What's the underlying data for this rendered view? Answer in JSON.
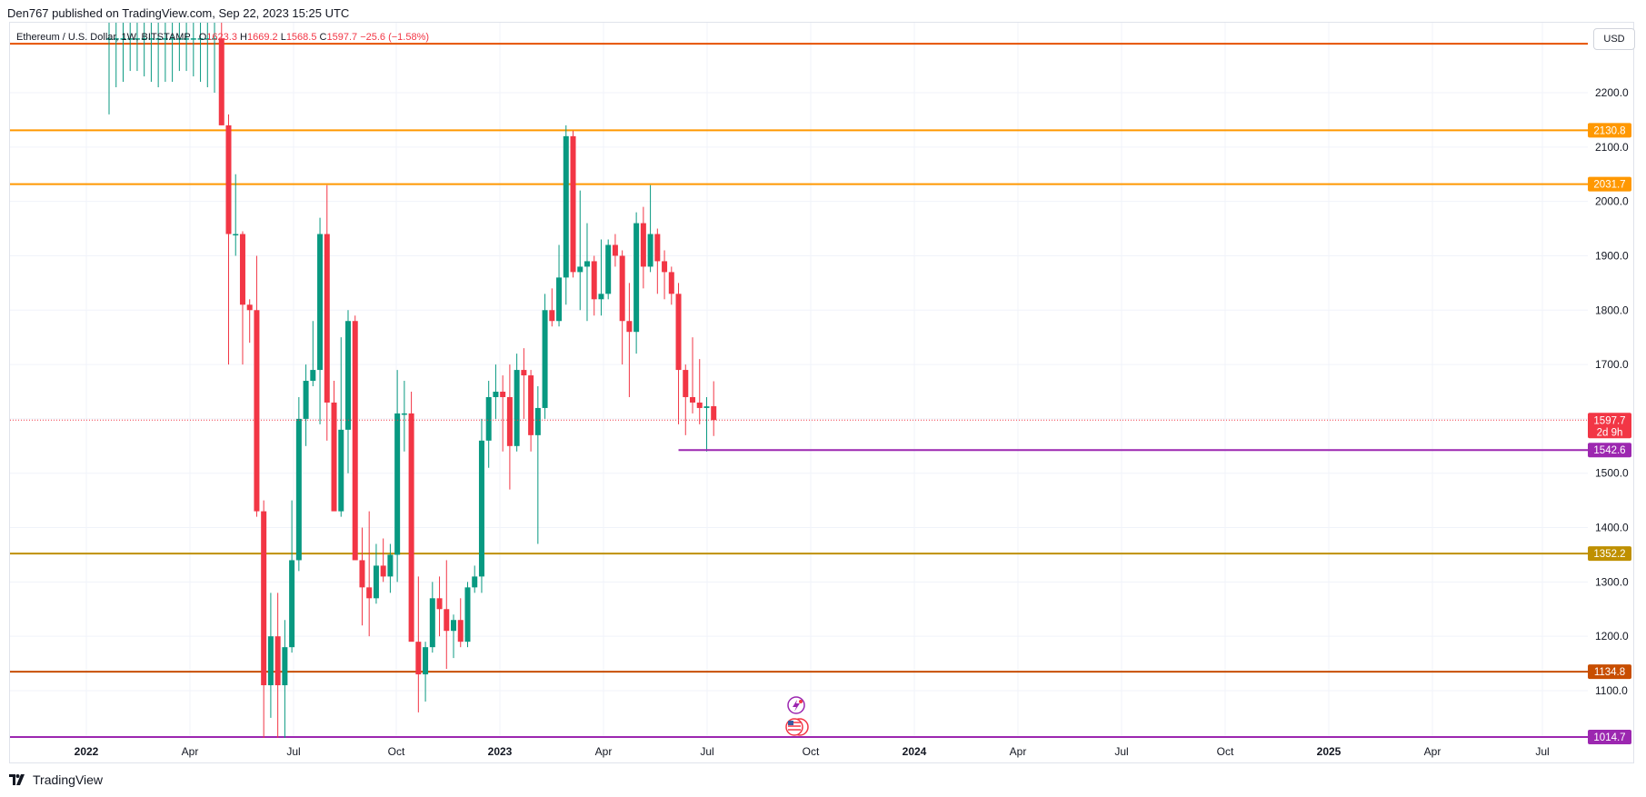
{
  "header": {
    "publish_text": "Den767 published on TradingView.com, Sep 22, 2023 15:25 UTC"
  },
  "symbol": {
    "name": "Ethereum / U.S. Dollar, 1W, BITSTAMP",
    "open_label": "O",
    "open_value": "1623.3",
    "high_label": "H",
    "high_value": "1669.2",
    "low_label": "L",
    "low_value": "1568.5",
    "close_label": "C",
    "close_value": "1597.7",
    "change": "−25.6 (−1.58%)"
  },
  "currency_label": "USD",
  "footer": {
    "brand": "TradingView"
  },
  "colors": {
    "up": "#089981",
    "down": "#f23645",
    "grid": "#f0f3fa",
    "line_2130": "#ff9800",
    "line_2031": "#ff9800",
    "line_2290": "#e65100",
    "line_1352": "#bf9000",
    "line_1134": "#c84e00",
    "line_1014": "#9c27b0",
    "line_1542": "#9c27b0"
  },
  "chart_data": {
    "type": "candlestick",
    "y_axis": {
      "ticks": [
        1100.0,
        1200.0,
        1300.0,
        1400.0,
        1500.0,
        1600.0,
        1700.0,
        1800.0,
        1900.0,
        2000.0,
        2100.0,
        2200.0
      ],
      "tick_labels": [
        "1100.0",
        "1200.0",
        "1300.0",
        "1400.0",
        "1500.0",
        "1600.0",
        "1700.0",
        "1800.0",
        "1900.0",
        "2000.0",
        "2100.0",
        "2200.0"
      ]
    },
    "x_axis": {
      "labels": [
        "2022",
        "Apr",
        "Jul",
        "Oct",
        "2023",
        "Apr",
        "Jul",
        "Oct",
        "2024",
        "Apr",
        "Jul",
        "Oct",
        "2025",
        "Apr",
        "Jul"
      ],
      "bold": [
        true,
        false,
        false,
        false,
        true,
        false,
        false,
        false,
        true,
        false,
        false,
        false,
        true,
        false,
        false
      ]
    },
    "horizontal_levels": [
      {
        "value": 2290.0,
        "color_key": "line_2290",
        "label": ""
      },
      {
        "value": 2130.8,
        "color_key": "line_2130",
        "label": "2130.8"
      },
      {
        "value": 2031.7,
        "color_key": "line_2031",
        "label": "2031.7"
      },
      {
        "value": 1352.2,
        "color_key": "line_1352",
        "label": "1352.2"
      },
      {
        "value": 1134.8,
        "color_key": "line_1134",
        "label": "1134.8"
      },
      {
        "value": 1014.7,
        "color_key": "line_1014",
        "label": "1014.7"
      }
    ],
    "support_ray": {
      "value": 1542.6,
      "label": "1542.6",
      "start_week": 81
    },
    "last_price": {
      "value": 1597.7,
      "label": "1597.7",
      "countdown": "2d 9h"
    },
    "candles_ohlc": [
      [
        2300,
        2400,
        2160,
        2300
      ],
      [
        2300,
        2410,
        2210,
        2300
      ],
      [
        2300,
        2400,
        2220,
        2300
      ],
      [
        2300,
        2420,
        2240,
        2300
      ],
      [
        2300,
        2450,
        2240,
        2300
      ],
      [
        2300,
        2430,
        2230,
        2300
      ],
      [
        2300,
        2420,
        2220,
        2300
      ],
      [
        2300,
        2400,
        2210,
        2300
      ],
      [
        2300,
        2420,
        2220,
        2300
      ],
      [
        2300,
        2410,
        2220,
        2300
      ],
      [
        2300,
        2430,
        2240,
        2300
      ],
      [
        2300,
        2440,
        2240,
        2300
      ],
      [
        2300,
        2420,
        2230,
        2300
      ],
      [
        2300,
        2410,
        2220,
        2300
      ],
      [
        2300,
        2400,
        2210,
        2300
      ],
      [
        2300,
        2380,
        2200,
        2300
      ],
      [
        2300,
        2360,
        2140,
        2140
      ],
      [
        2140,
        2160,
        1700,
        1940
      ],
      [
        1940,
        2050,
        1900,
        1940
      ],
      [
        1940,
        1945,
        1700,
        1810
      ],
      [
        1810,
        1820,
        1740,
        1800
      ],
      [
        1800,
        1900,
        1420,
        1430
      ],
      [
        1430,
        1450,
        1000,
        1110
      ],
      [
        1110,
        1280,
        1050,
        1200
      ],
      [
        1200,
        1280,
        1000,
        1110
      ],
      [
        1110,
        1230,
        1000,
        1180
      ],
      [
        1180,
        1450,
        1170,
        1340
      ],
      [
        1340,
        1640,
        1320,
        1600
      ],
      [
        1600,
        1700,
        1550,
        1670
      ],
      [
        1670,
        1780,
        1660,
        1690
      ],
      [
        1690,
        1970,
        1590,
        1940
      ],
      [
        1940,
        2030,
        1560,
        1630
      ],
      [
        1630,
        1670,
        1440,
        1430
      ],
      [
        1430,
        1750,
        1420,
        1580
      ],
      [
        1580,
        1800,
        1500,
        1780
      ],
      [
        1780,
        1790,
        1560,
        1340
      ],
      [
        1340,
        1400,
        1220,
        1290
      ],
      [
        1290,
        1430,
        1200,
        1270
      ],
      [
        1270,
        1370,
        1260,
        1330
      ],
      [
        1330,
        1380,
        1300,
        1310
      ],
      [
        1310,
        1370,
        1280,
        1350
      ],
      [
        1350,
        1690,
        1300,
        1610
      ],
      [
        1610,
        1670,
        1540,
        1610
      ],
      [
        1610,
        1650,
        1200,
        1190
      ],
      [
        1190,
        1310,
        1060,
        1130
      ],
      [
        1130,
        1190,
        1080,
        1180
      ],
      [
        1180,
        1300,
        1170,
        1270
      ],
      [
        1270,
        1310,
        1200,
        1250
      ],
      [
        1250,
        1340,
        1140,
        1210
      ],
      [
        1210,
        1240,
        1160,
        1230
      ],
      [
        1230,
        1270,
        1180,
        1190
      ],
      [
        1190,
        1300,
        1180,
        1290
      ],
      [
        1290,
        1330,
        1280,
        1310
      ],
      [
        1310,
        1600,
        1280,
        1560
      ],
      [
        1560,
        1670,
        1510,
        1640
      ],
      [
        1640,
        1700,
        1600,
        1650
      ],
      [
        1650,
        1680,
        1540,
        1640
      ],
      [
        1640,
        1700,
        1470,
        1550
      ],
      [
        1550,
        1720,
        1540,
        1690
      ],
      [
        1690,
        1730,
        1600,
        1680
      ],
      [
        1680,
        1690,
        1540,
        1570
      ],
      [
        1570,
        1660,
        1370,
        1620
      ],
      [
        1620,
        1830,
        1600,
        1800
      ],
      [
        1800,
        1840,
        1770,
        1780
      ],
      [
        1780,
        1920,
        1770,
        1860
      ],
      [
        1860,
        2140,
        1810,
        2120
      ],
      [
        2120,
        2130,
        1860,
        1870
      ],
      [
        1870,
        2020,
        1800,
        1880
      ],
      [
        1880,
        1960,
        1780,
        1890
      ],
      [
        1890,
        1900,
        1790,
        1820
      ],
      [
        1820,
        1930,
        1790,
        1830
      ],
      [
        1830,
        1930,
        1820,
        1920
      ],
      [
        1920,
        1940,
        1880,
        1900
      ],
      [
        1900,
        1910,
        1700,
        1780
      ],
      [
        1780,
        1850,
        1640,
        1760
      ],
      [
        1760,
        1980,
        1720,
        1960
      ],
      [
        1960,
        1990,
        1840,
        1880
      ],
      [
        1880,
        2030,
        1870,
        1940
      ],
      [
        1940,
        1950,
        1830,
        1890
      ],
      [
        1890,
        1910,
        1820,
        1870
      ],
      [
        1870,
        1880,
        1810,
        1830
      ],
      [
        1830,
        1850,
        1590,
        1690
      ],
      [
        1690,
        1700,
        1570,
        1640
      ],
      [
        1640,
        1750,
        1610,
        1630
      ],
      [
        1630,
        1710,
        1590,
        1620
      ],
      [
        1620,
        1640,
        1540,
        1623
      ],
      [
        1623.3,
        1669.2,
        1568.5,
        1597.7
      ]
    ]
  }
}
